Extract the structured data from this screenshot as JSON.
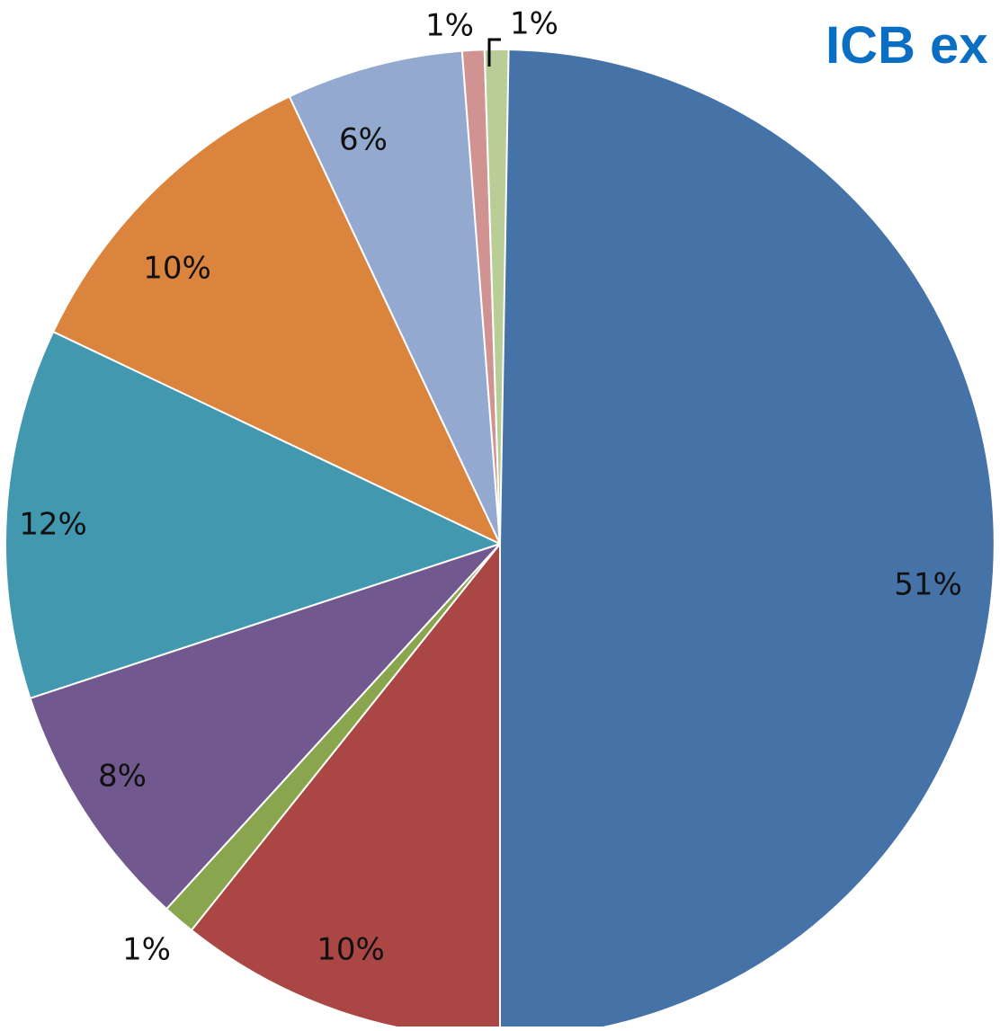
{
  "chart_data": {
    "type": "pie",
    "title": "ICB ex",
    "start": "12 o'clock",
    "direction": "clockwise",
    "slices": [
      {
        "value": 51,
        "label": "51%",
        "color": "#4572a7"
      },
      {
        "value": 10,
        "label": "10%",
        "color": "#aa4643"
      },
      {
        "value": 1,
        "label": "1%",
        "color": "#89a54e"
      },
      {
        "value": 8,
        "label": "8%",
        "color": "#71588f"
      },
      {
        "value": 12,
        "label": "12%",
        "color": "#4198af"
      },
      {
        "value": 10,
        "label": "10%",
        "color": "#db843d"
      },
      {
        "value": 6,
        "label": "6%",
        "color": "#93a9cf"
      },
      {
        "value": 1,
        "label": "1%",
        "color": "#d19392"
      },
      {
        "value": 1,
        "label": "1%",
        "color": "#b9cd96"
      }
    ]
  }
}
